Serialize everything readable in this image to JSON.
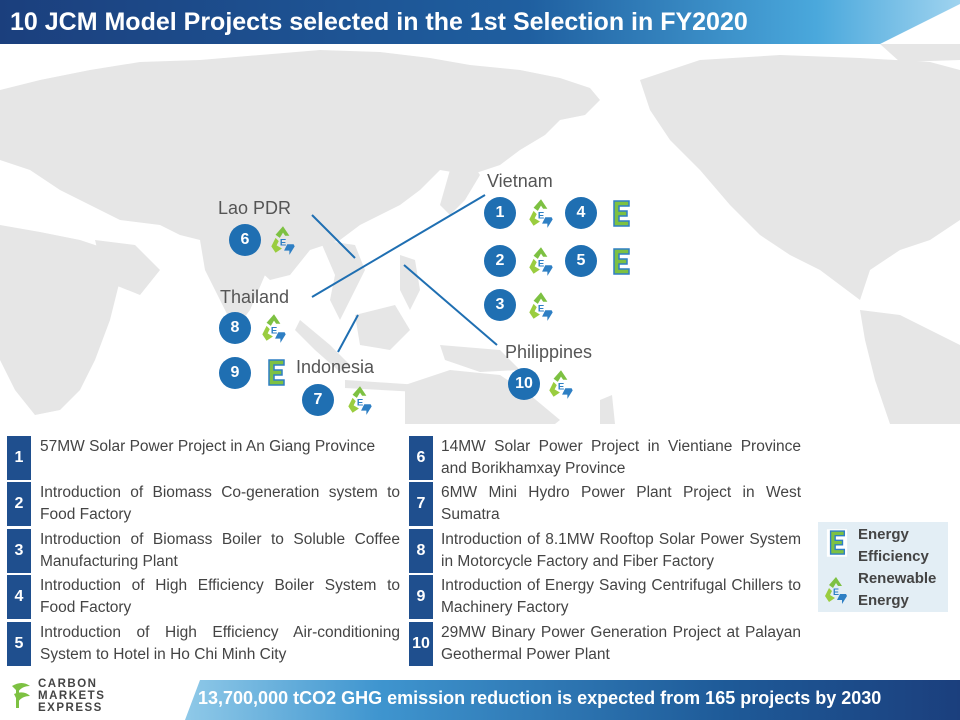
{
  "title": "10 JCM Model Projects selected in the 1st Selection in FY2020",
  "countries": {
    "vietnam": "Vietnam",
    "lao": "Lao PDR",
    "thailand": "Thailand",
    "indonesia": "Indonesia",
    "philippines": "Philippines"
  },
  "markers": {
    "m1": "1",
    "m2": "2",
    "m3": "3",
    "m4": "4",
    "m5": "5",
    "m6": "6",
    "m7": "7",
    "m8": "8",
    "m9": "9",
    "m10": "10"
  },
  "icon_names": {
    "energy_efficiency": "energy-efficiency-icon",
    "renewable_energy": "renewable-energy-icon"
  },
  "projects": [
    {
      "num": "1",
      "text": "57MW Solar Power Project in An Giang Province"
    },
    {
      "num": "2",
      "text": "Introduction of Biomass Co-generation system to Food Factory"
    },
    {
      "num": "3",
      "text": "Introduction of Biomass Boiler to Soluble Coffee Manufacturing Plant"
    },
    {
      "num": "4",
      "text": "Introduction of High Efficiency Boiler System to Food Factory"
    },
    {
      "num": "5",
      "text": "Introduction of High Efficiency Air-conditioning System to Hotel in Ho Chi Minh City"
    },
    {
      "num": "6",
      "text": "14MW Solar Power Project in Vientiane Province and Borikhamxay Province"
    },
    {
      "num": "7",
      "text": "6MW Mini Hydro Power Plant Project in West Sumatra"
    },
    {
      "num": "8",
      "text": "Introduction of 8.1MW Rooftop Solar Power System in Motorcycle Factory and Fiber Factory"
    },
    {
      "num": "9",
      "text": "Introduction of Energy Saving Centrifugal Chillers to Machinery Factory"
    },
    {
      "num": "10",
      "text": "29MW Binary Power Generation Project at Palayan Geothermal Power Plant"
    }
  ],
  "legend": {
    "ee_line1": "Energy",
    "ee_line2": "Efficiency",
    "re_line1": "Renewable",
    "re_line2": "Energy"
  },
  "footer": "13,700,000 tCO2 GHG emission reduction is expected from 165 projects by 2030",
  "logo": {
    "line1": "CARBON",
    "line2": "MARKETS",
    "line3": "EXPRESS"
  },
  "colors": {
    "title_bar": "#1e4f8f",
    "badge": "#1f6fb2",
    "list_number": "#1f4f8e",
    "legend_bg": "#e3eef5",
    "ee_green": "#7dc142",
    "re_blue": "#2e7fc4"
  }
}
